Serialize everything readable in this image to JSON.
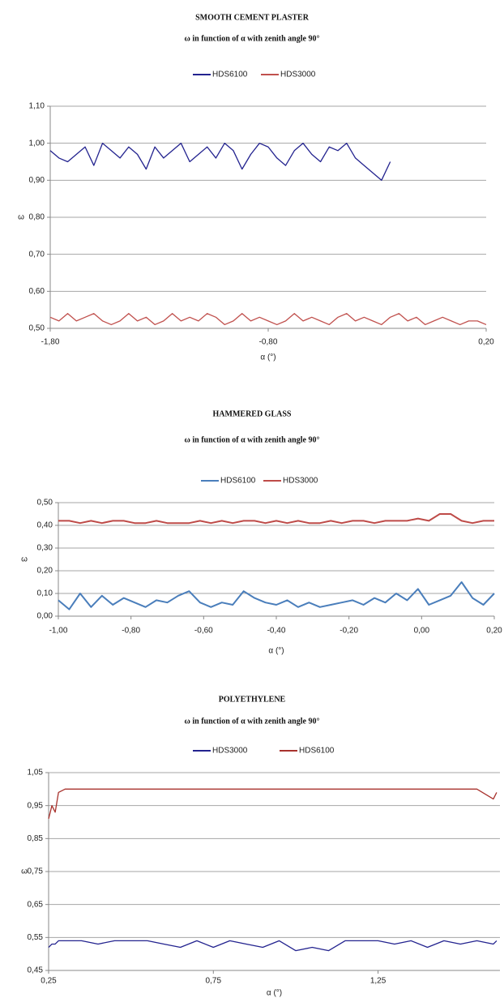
{
  "chart_data": [
    {
      "type": "line",
      "title": "SMOOTH CEMENT PLASTER",
      "subtitle": "ω in function of α with zenith angle 90°",
      "xlabel": "α (°)",
      "ylabel": "ω",
      "grid": true,
      "legend": "top",
      "xlim": [
        -1.8,
        0.2
      ],
      "xticks": [
        {
          "value": -1.8,
          "label": "-1,80"
        },
        {
          "value": -0.8,
          "label": "-0,80"
        },
        {
          "value": 0.2,
          "label": "0,20"
        }
      ],
      "ylim": [
        0.5,
        1.1
      ],
      "yticks": [
        {
          "value": 0.5,
          "label": "0,50"
        },
        {
          "value": 0.6,
          "label": "0,60"
        },
        {
          "value": 0.7,
          "label": "0,70"
        },
        {
          "value": 0.8,
          "label": "0,80"
        },
        {
          "value": 0.9,
          "label": "0,90"
        },
        {
          "value": 1.0,
          "label": "1,00"
        },
        {
          "value": 1.1,
          "label": "1,10"
        }
      ],
      "x": [
        -1.8,
        -1.76,
        -1.72,
        -1.68,
        -1.64,
        -1.6,
        -1.56,
        -1.52,
        -1.48,
        -1.44,
        -1.4,
        -1.36,
        -1.32,
        -1.28,
        -1.24,
        -1.2,
        -1.16,
        -1.12,
        -1.08,
        -1.04,
        -1.0,
        -0.96,
        -0.92,
        -0.88,
        -0.84,
        -0.8,
        -0.76,
        -0.72,
        -0.68,
        -0.64,
        -0.6,
        -0.56,
        -0.52,
        -0.48,
        -0.44,
        -0.4,
        -0.36,
        -0.32,
        -0.28,
        -0.24,
        -0.2,
        -0.16,
        -0.12,
        -0.08,
        -0.04,
        0.0,
        0.04,
        0.08,
        0.12,
        0.16,
        0.2
      ],
      "series": [
        {
          "name": "HDS6100",
          "color": "#23238f",
          "values": [
            0.98,
            0.96,
            0.95,
            0.97,
            0.99,
            0.94,
            1.0,
            0.98,
            0.96,
            0.99,
            0.97,
            0.93,
            0.99,
            0.96,
            0.98,
            1.0,
            0.95,
            0.97,
            0.99,
            0.96,
            1.0,
            0.98,
            0.93,
            0.97,
            1.0,
            0.99,
            0.96,
            0.94,
            0.98,
            1.0,
            0.97,
            0.95,
            0.99,
            0.98,
            1.0,
            0.96,
            0.94,
            0.92,
            0.9,
            0.95,
            null,
            null,
            null,
            null,
            null,
            null,
            null,
            null,
            null,
            null,
            null
          ]
        },
        {
          "name": "HDS3000",
          "color": "#c0504d",
          "values": [
            0.53,
            0.52,
            0.54,
            0.52,
            0.53,
            0.54,
            0.52,
            0.51,
            0.52,
            0.54,
            0.52,
            0.53,
            0.51,
            0.52,
            0.54,
            0.52,
            0.53,
            0.52,
            0.54,
            0.53,
            0.51,
            0.52,
            0.54,
            0.52,
            0.53,
            0.52,
            0.51,
            0.52,
            0.54,
            0.52,
            0.53,
            0.52,
            0.51,
            0.53,
            0.54,
            0.52,
            0.53,
            0.52,
            0.51,
            0.53,
            0.54,
            0.52,
            0.53,
            0.51,
            0.52,
            0.53,
            0.52,
            0.51,
            0.52,
            0.52,
            0.51
          ]
        }
      ]
    },
    {
      "type": "line",
      "title": "HAMMERED GLASS",
      "subtitle": "ω in function of α with zenith angle 90°",
      "xlabel": "α (°)",
      "ylabel": "ω",
      "grid": true,
      "legend": "top",
      "xlim": [
        -1.0,
        0.2
      ],
      "xticks": [
        {
          "value": -1.0,
          "label": "-1,00"
        },
        {
          "value": -0.8,
          "label": "-0,80"
        },
        {
          "value": -0.6,
          "label": "-0,60"
        },
        {
          "value": -0.4,
          "label": "-0,40"
        },
        {
          "value": -0.2,
          "label": "-0,20"
        },
        {
          "value": 0.0,
          "label": "0,00"
        },
        {
          "value": 0.2,
          "label": "0,20"
        }
      ],
      "ylim": [
        0.0,
        0.5
      ],
      "yticks": [
        {
          "value": 0.0,
          "label": "0,00"
        },
        {
          "value": 0.1,
          "label": "0,10"
        },
        {
          "value": 0.2,
          "label": "0,20"
        },
        {
          "value": 0.3,
          "label": "0,30"
        },
        {
          "value": 0.4,
          "label": "0,40"
        },
        {
          "value": 0.5,
          "label": "0,50"
        }
      ],
      "x": [
        -1.0,
        -0.97,
        -0.94,
        -0.91,
        -0.88,
        -0.85,
        -0.82,
        -0.79,
        -0.76,
        -0.73,
        -0.7,
        -0.67,
        -0.64,
        -0.61,
        -0.58,
        -0.55,
        -0.52,
        -0.49,
        -0.46,
        -0.43,
        -0.4,
        -0.37,
        -0.34,
        -0.31,
        -0.28,
        -0.25,
        -0.22,
        -0.19,
        -0.16,
        -0.13,
        -0.1,
        -0.07,
        -0.04,
        -0.01,
        0.02,
        0.05,
        0.08,
        0.11,
        0.14,
        0.17,
        0.2
      ],
      "series": [
        {
          "name": "HDS6100",
          "color": "#4a7ebb",
          "values": [
            0.07,
            0.03,
            0.1,
            0.04,
            0.09,
            0.05,
            0.08,
            0.06,
            0.04,
            0.07,
            0.06,
            0.09,
            0.11,
            0.06,
            0.04,
            0.06,
            0.05,
            0.11,
            0.08,
            0.06,
            0.05,
            0.07,
            0.04,
            0.06,
            0.04,
            0.05,
            0.06,
            0.07,
            0.05,
            0.08,
            0.06,
            0.1,
            0.07,
            0.12,
            0.05,
            0.07,
            0.09,
            0.15,
            0.08,
            0.05,
            0.1
          ]
        },
        {
          "name": "HDS3000",
          "color": "#be4b48",
          "values": [
            0.42,
            0.42,
            0.41,
            0.42,
            0.41,
            0.42,
            0.42,
            0.41,
            0.41,
            0.42,
            0.41,
            0.41,
            0.41,
            0.42,
            0.41,
            0.42,
            0.41,
            0.42,
            0.42,
            0.41,
            0.42,
            0.41,
            0.42,
            0.41,
            0.41,
            0.42,
            0.41,
            0.42,
            0.42,
            0.41,
            0.42,
            0.42,
            0.42,
            0.43,
            0.42,
            0.45,
            0.45,
            0.42,
            0.41,
            0.42,
            0.42
          ]
        }
      ]
    },
    {
      "type": "line",
      "title": "POLYETHYLENE",
      "subtitle": "ω in function of α with zenith angle 90°",
      "xlabel": "α (°)",
      "ylabel": "ω",
      "grid": true,
      "legend": "top",
      "xlim": [
        0.25,
        1.62
      ],
      "xticks": [
        {
          "value": 0.25,
          "label": "0,25"
        },
        {
          "value": 0.75,
          "label": "0,75"
        },
        {
          "value": 1.25,
          "label": "1,25"
        }
      ],
      "ylim": [
        0.45,
        1.05
      ],
      "yticks": [
        {
          "value": 0.45,
          "label": "0,45"
        },
        {
          "value": 0.55,
          "label": "0,55"
        },
        {
          "value": 0.65,
          "label": "0,65"
        },
        {
          "value": 0.75,
          "label": "0,75"
        },
        {
          "value": 0.85,
          "label": "0,85"
        },
        {
          "value": 0.95,
          "label": "0,95"
        },
        {
          "value": 1.05,
          "label": "1,05"
        }
      ],
      "x": [
        0.25,
        0.26,
        0.27,
        0.28,
        0.3,
        0.35,
        0.4,
        0.45,
        0.5,
        0.55,
        0.6,
        0.65,
        0.7,
        0.75,
        0.8,
        0.85,
        0.9,
        0.95,
        1.0,
        1.05,
        1.1,
        1.15,
        1.2,
        1.25,
        1.3,
        1.35,
        1.4,
        1.45,
        1.5,
        1.55,
        1.6,
        1.61
      ],
      "series": [
        {
          "name": "HDS3000",
          "color": "#23238f",
          "values": [
            0.52,
            0.53,
            0.53,
            0.54,
            0.54,
            0.54,
            0.53,
            0.54,
            0.54,
            0.54,
            0.53,
            0.52,
            0.54,
            0.52,
            0.54,
            0.53,
            0.52,
            0.54,
            0.51,
            0.52,
            0.51,
            0.54,
            0.54,
            0.54,
            0.53,
            0.54,
            0.52,
            0.54,
            0.53,
            0.54,
            0.53,
            0.54
          ]
        },
        {
          "name": "HDS6100",
          "color": "#a8322d",
          "values": [
            0.91,
            0.95,
            0.93,
            0.99,
            1.0,
            1.0,
            1.0,
            1.0,
            1.0,
            1.0,
            1.0,
            1.0,
            1.0,
            1.0,
            1.0,
            1.0,
            1.0,
            1.0,
            1.0,
            1.0,
            1.0,
            1.0,
            1.0,
            1.0,
            1.0,
            1.0,
            1.0,
            1.0,
            1.0,
            1.0,
            0.97,
            0.99
          ]
        }
      ]
    }
  ]
}
